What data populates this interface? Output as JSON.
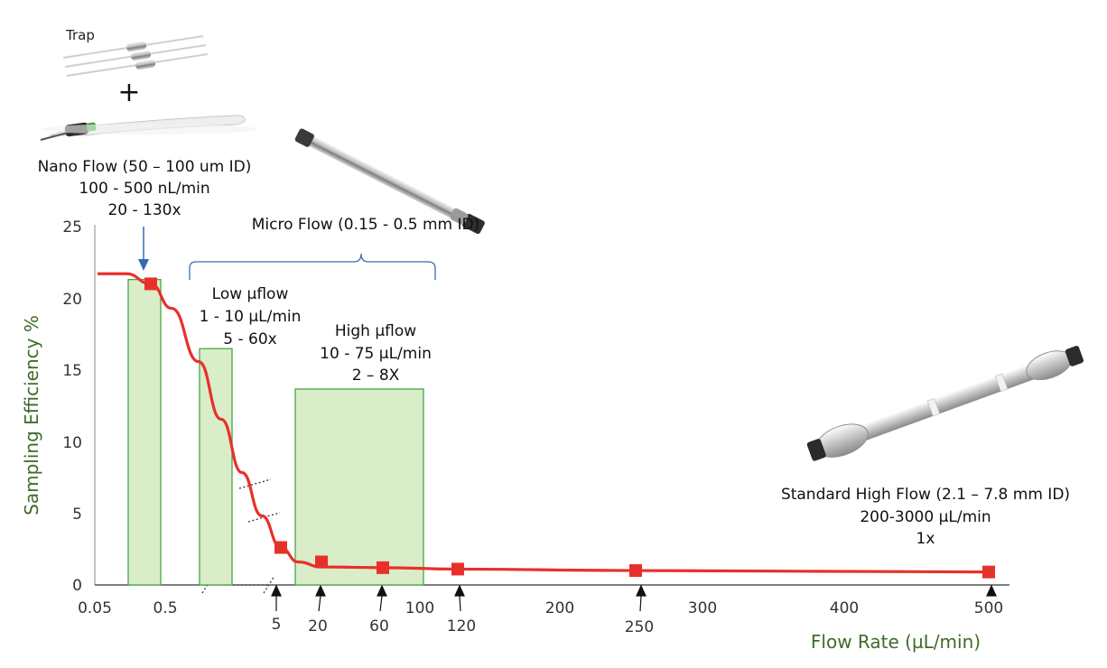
{
  "chart_data": {
    "type": "line",
    "ylabel": "Sampling Efficiency %",
    "xlabel": "Flow Rate (µL/min)",
    "ylim": [
      0,
      25
    ],
    "y_ticks": [
      "0",
      "5",
      "10",
      "15",
      "20",
      "25"
    ],
    "x_ticks_top": [
      "0.05",
      "0.5",
      "100",
      "200",
      "300",
      "400",
      "500"
    ],
    "x_ticks_arrow": [
      "5",
      "20",
      "60",
      "120",
      "250"
    ],
    "x_scale": "broken",
    "grid": false,
    "colors": {
      "curve": "#e8302a",
      "marker": "#e8302a",
      "bar_fill": "#d9edc8",
      "bar_edge": "#48a548",
      "axis_title": "#3f6b2a",
      "bracket": "#3b6ea8",
      "arrow_blue": "#2f6cb5"
    },
    "series": [
      {
        "values": [
          {
            "x": 0.3,
            "y": 20.9
          },
          {
            "x": 5,
            "y": 2.6
          },
          {
            "x": 20,
            "y": 1.6
          },
          {
            "x": 60,
            "y": 1.2
          },
          {
            "x": 120,
            "y": 1.1
          },
          {
            "x": 250,
            "y": 1.0
          },
          {
            "x": 500,
            "y": 0.9
          }
        ]
      }
    ],
    "bars": [
      {
        "range": "nano",
        "y": 21.2
      },
      {
        "range": "low",
        "y": 16.4
      },
      {
        "range": "high",
        "y": 13.6
      }
    ],
    "annotations": {
      "trap": "Trap",
      "plus": "+",
      "nano_lines": [
        "Nano Flow (50 – 100 um ID)",
        "100 - 500 nL/min",
        "20 - 130x"
      ],
      "micro": "Micro Flow (0.15 - 0.5 mm ID)",
      "low_lines": [
        "Low µflow",
        "1 - 10 µL/min",
        "5 - 60x"
      ],
      "high_lines": [
        "High µflow",
        "10 - 75 µL/min",
        "2 – 8X"
      ],
      "standard_lines": [
        "Standard High Flow (2.1 – 7.8 mm ID)",
        "200-3000 µL/min",
        "1x"
      ]
    }
  }
}
